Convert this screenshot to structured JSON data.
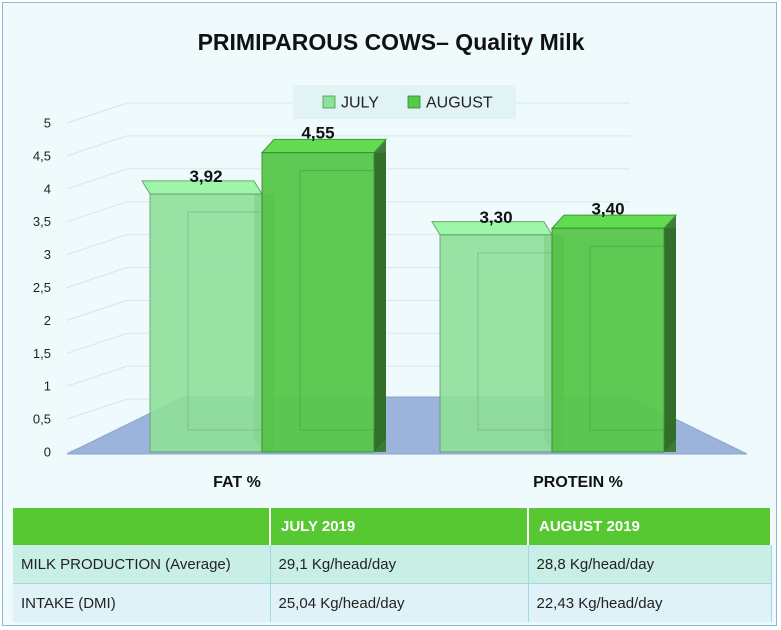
{
  "chart_data": {
    "type": "bar",
    "title": "PRIMIPAROUS COWS– Quality Milk",
    "categories": [
      "FAT %",
      "PROTEIN %"
    ],
    "series": [
      {
        "name": "JULY",
        "values": [
          3.92,
          3.3
        ],
        "labels": [
          "3,92",
          "3,30"
        ],
        "color": "#8fe09a"
      },
      {
        "name": "AUGUST",
        "values": [
          4.55,
          3.4
        ],
        "labels": [
          "4,55",
          "3,40"
        ],
        "color": "#58c84a"
      }
    ],
    "ylim": [
      0,
      5
    ],
    "yticks": [
      0,
      0.5,
      1,
      1.5,
      2,
      2.5,
      3,
      3.5,
      4,
      4.5,
      5
    ],
    "ytick_labels": [
      "0",
      "0,5",
      "1",
      "1,5",
      "2",
      "2,5",
      "3",
      "3,5",
      "4",
      "4,5",
      "5"
    ],
    "legend": "top-center",
    "grid": true,
    "floor_color": "#9cb4dc"
  },
  "table": {
    "headers": [
      "",
      "JULY 2019",
      "AUGUST 2019"
    ],
    "rows": [
      [
        "MILK PRODUCTION (Average)",
        "29,1 Kg/head/day",
        "28,8 Kg/head/day"
      ],
      [
        "INTAKE (DMI)",
        "25,04 Kg/head/day",
        "22,43 Kg/head/day"
      ]
    ],
    "header_color": "#58c832"
  }
}
